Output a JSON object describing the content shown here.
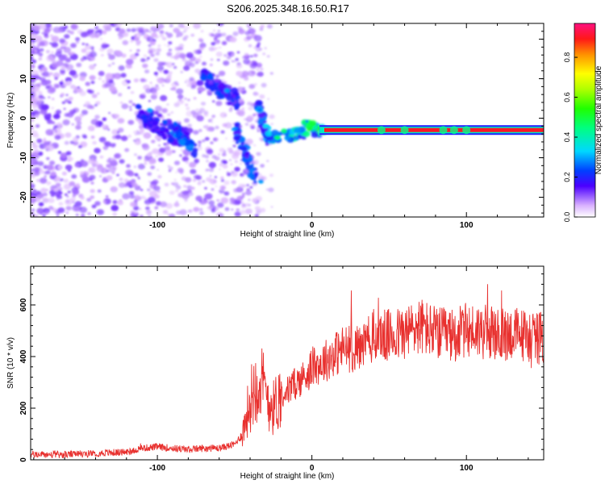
{
  "title": "S206.2025.348.16.50.R17",
  "chart_data": [
    {
      "type": "heatmap",
      "name": "spectrogram",
      "xlabel": "Height of straight line (km)",
      "ylabel": "Frequency (Hz)",
      "xlim": [
        -182,
        150
      ],
      "ylim": [
        -25,
        24
      ],
      "x_ticks": [
        -100,
        0,
        100
      ],
      "y_ticks": [
        -20,
        -10,
        0,
        10,
        20
      ],
      "x_tick_labels": [
        "-100",
        "0",
        "100"
      ],
      "y_tick_labels": [
        "-20",
        "-10",
        "0",
        "10",
        "20"
      ],
      "carrier_frequency_hz": -3,
      "colorbar": {
        "label": "Normalized spectral amplitude",
        "range": [
          0,
          0.97
        ],
        "ticks": [
          0.0,
          0.2,
          0.4,
          0.6,
          0.8
        ],
        "tick_labels": [
          "0.0",
          "0.2",
          "0.4",
          "0.6",
          "0.8"
        ]
      },
      "features": [
        {
          "x": -105,
          "y": 2,
          "amplitude": 0.3
        },
        {
          "x": -95,
          "y": -1,
          "amplitude": 0.25
        },
        {
          "x": -85,
          "y": -4,
          "amplitude": 0.25
        },
        {
          "x": -70,
          "y": 10,
          "amplitude": 0.25
        },
        {
          "x": -55,
          "y": 7,
          "amplitude": 0.3
        },
        {
          "x": -33,
          "y": -16,
          "amplitude": 0.3
        },
        {
          "x": -30,
          "y": -2,
          "amplitude": 0.35
        },
        {
          "x": -2,
          "y": -2,
          "amplitude": 0.5
        },
        {
          "x": 20,
          "y": -3,
          "amplitude": 0.95
        },
        {
          "x": 100,
          "y": -3,
          "amplitude": 0.95
        }
      ]
    },
    {
      "type": "line",
      "name": "snr",
      "xlabel": "Height of straight line (km)",
      "ylabel": "SNR (10 * v/v)",
      "xlim": [
        -182,
        150
      ],
      "ylim": [
        0,
        750
      ],
      "x_ticks": [
        -100,
        0,
        100
      ],
      "y_ticks": [
        0,
        200,
        400,
        600
      ],
      "x_tick_labels": [
        "-100",
        "0",
        "100"
      ],
      "y_tick_labels": [
        "0",
        "200",
        "400",
        "600"
      ],
      "color": "#e8302e",
      "series": [
        {
          "name": "SNR",
          "x": [
            -182,
            -160,
            -140,
            -120,
            -110,
            -100,
            -90,
            -80,
            -70,
            -60,
            -50,
            -45,
            -40,
            -35,
            -30,
            -25,
            -20,
            -15,
            -10,
            -5,
            0,
            5,
            10,
            20,
            30,
            40,
            50,
            60,
            70,
            80,
            90,
            100,
            110,
            120,
            130,
            140,
            150
          ],
          "values": [
            20,
            20,
            25,
            30,
            45,
            50,
            45,
            40,
            45,
            45,
            60,
            100,
            230,
            320,
            260,
            200,
            260,
            270,
            300,
            320,
            360,
            370,
            390,
            430,
            430,
            480,
            480,
            490,
            520,
            490,
            480,
            500,
            500,
            480,
            490,
            480,
            470
          ]
        }
      ]
    }
  ]
}
